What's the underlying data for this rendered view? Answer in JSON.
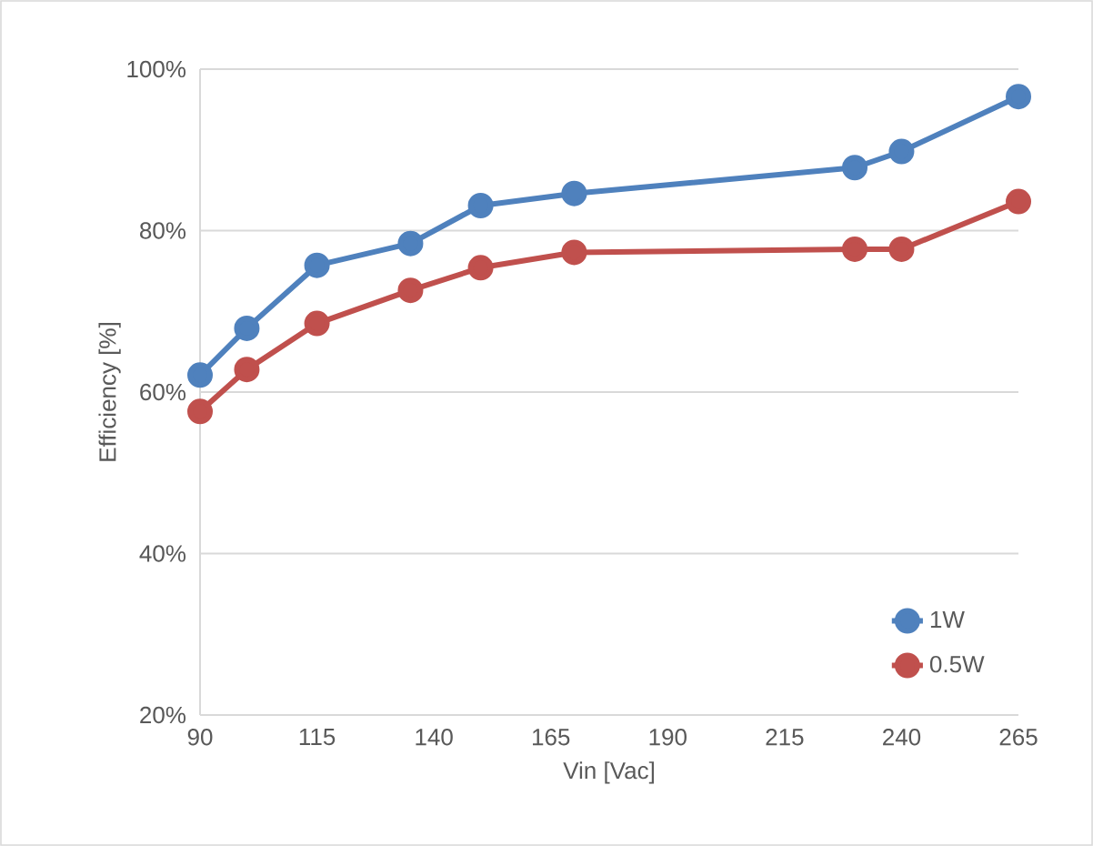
{
  "chart_data": {
    "type": "line",
    "xlabel": "Vin [Vac]",
    "ylabel": "Efficiency [%]",
    "x": [
      90,
      100,
      115,
      135,
      150,
      170,
      230,
      240,
      265
    ],
    "series": [
      {
        "name": "1W",
        "color": "#4f81bd",
        "values": [
          62.1,
          67.9,
          75.7,
          78.4,
          83.1,
          84.6,
          87.8,
          89.8,
          96.6
        ]
      },
      {
        "name": "0.5W",
        "color": "#c0504d",
        "values": [
          57.6,
          62.8,
          68.5,
          72.6,
          75.4,
          77.3,
          77.7,
          77.7,
          83.6
        ]
      }
    ],
    "xlim": [
      90,
      265
    ],
    "xticks": [
      90,
      115,
      140,
      165,
      190,
      215,
      240,
      265
    ],
    "ylim": [
      20,
      100
    ],
    "yticks": [
      {
        "value": 20,
        "label": "20%"
      },
      {
        "value": 40,
        "label": "40%"
      },
      {
        "value": 60,
        "label": "60%"
      },
      {
        "value": 80,
        "label": "80%"
      },
      {
        "value": 100,
        "label": "100%"
      }
    ],
    "grid": "y",
    "legend": "bottom right",
    "marker": "circle",
    "line_style": "solid"
  }
}
